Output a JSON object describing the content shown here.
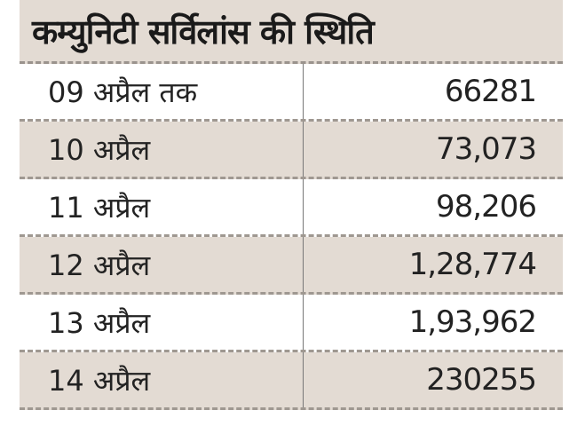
{
  "table": {
    "title": "कम्युनिटी सर्विलांस की स्थिति",
    "rows": [
      {
        "date": "09 अप्रैल तक",
        "value": "66281"
      },
      {
        "date": "10 अप्रैल",
        "value": "73,073"
      },
      {
        "date": "11 अप्रैल",
        "value": "98,206"
      },
      {
        "date": "12 अप्रैल",
        "value": "1,28,774"
      },
      {
        "date": "13 अप्रैल",
        "value": "1,93,962"
      },
      {
        "date": "14 अप्रैल",
        "value": "230255"
      }
    ]
  },
  "colors": {
    "band": "#e3dbd3",
    "border": "#9f9891"
  }
}
